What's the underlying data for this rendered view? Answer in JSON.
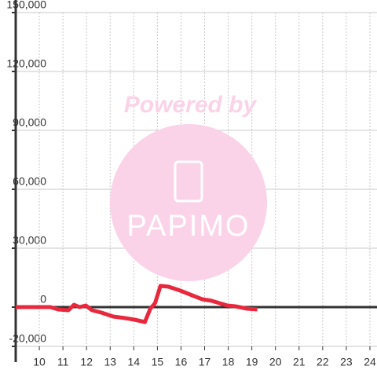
{
  "chart_data": {
    "type": "line",
    "watermark": {
      "title": "Powered by",
      "brand": "PAPIMO"
    },
    "x": [
      9,
      10.47,
      10.8,
      11.23,
      11.47,
      11.7,
      11.97,
      12.23,
      12.63,
      13.13,
      13.63,
      14.03,
      14.47,
      14.7,
      14.9,
      15.13,
      15.47,
      15.97,
      16.47,
      16.9,
      17.3,
      17.63,
      17.97,
      18.3,
      18.8,
      19.23
    ],
    "series": [
      {
        "color": "#e8283c",
        "values": [
          0,
          0,
          -1200,
          -1600,
          1200,
          0,
          800,
          -1600,
          -2800,
          -4800,
          -5600,
          -6400,
          -7600,
          -800,
          2000,
          10800,
          10400,
          8400,
          6000,
          4000,
          3200,
          2000,
          800,
          400,
          -800,
          -1200
        ]
      }
    ],
    "xlim": [
      9,
      24.3
    ],
    "xticks": [
      10,
      11,
      12,
      13,
      14,
      15,
      16,
      17,
      18,
      19,
      20,
      21,
      22,
      23,
      24
    ],
    "ylim": [
      -20000,
      150000
    ],
    "yticks": [
      {
        "value": -20000,
        "label": "-20,000"
      },
      0,
      {
        "value": 30000,
        "label": "30,000"
      },
      {
        "value": 60000,
        "label": "60,000"
      },
      {
        "value": 90000,
        "label": "90,000"
      },
      {
        "value": 120000,
        "label": "120,000"
      },
      {
        "value": 150000,
        "label": "150,000"
      }
    ],
    "grid": true
  }
}
